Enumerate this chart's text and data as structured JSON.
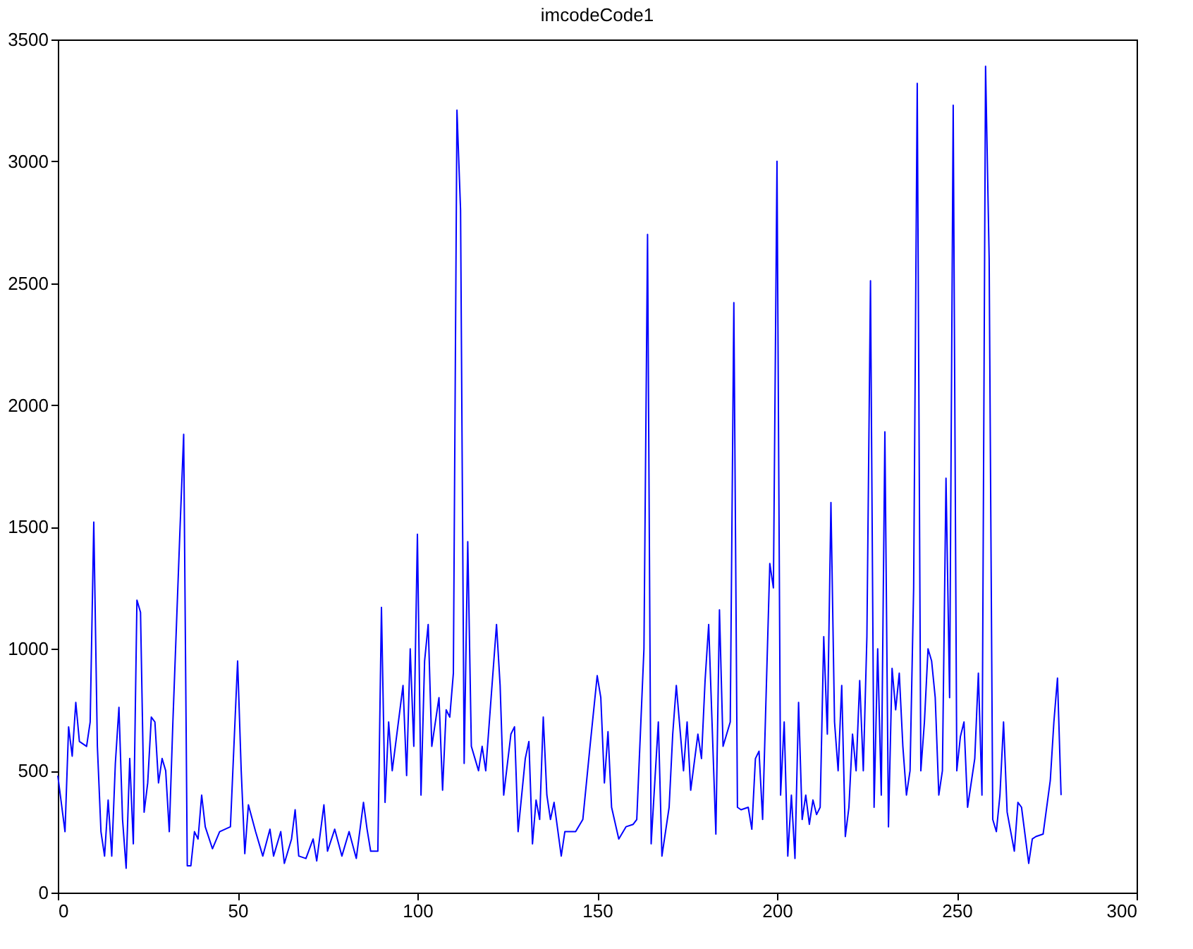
{
  "chart_data": {
    "type": "line",
    "title": "imcodeCode1",
    "x": [
      0,
      2,
      3,
      4,
      5,
      6,
      8,
      9,
      10,
      11,
      12,
      13,
      14,
      15,
      16,
      17,
      18,
      19,
      20,
      21,
      22,
      23,
      24,
      25,
      26,
      27,
      28,
      29,
      30,
      31,
      32,
      34,
      35,
      36,
      37,
      38,
      39,
      40,
      41,
      43,
      45,
      48,
      50,
      51,
      52,
      53,
      55,
      57,
      59,
      60,
      62,
      63,
      65,
      66,
      67,
      69,
      71,
      72,
      74,
      75,
      77,
      79,
      81,
      83,
      85,
      86,
      87,
      89,
      90,
      91,
      92,
      93,
      96,
      97,
      98,
      99,
      100,
      101,
      102,
      103,
      104,
      106,
      107,
      108,
      109,
      110,
      111,
      112,
      113,
      114,
      115,
      116,
      117,
      118,
      119,
      122,
      123,
      124,
      126,
      127,
      128,
      130,
      131,
      132,
      133,
      134,
      135,
      136,
      137,
      138,
      140,
      141,
      144,
      146,
      148,
      150,
      151,
      152,
      153,
      154,
      156,
      158,
      160,
      161,
      163,
      164,
      165,
      167,
      168,
      170,
      171,
      172,
      174,
      175,
      176,
      178,
      179,
      180,
      181,
      183,
      184,
      185,
      187,
      188,
      189,
      190,
      192,
      193,
      194,
      195,
      196,
      198,
      199,
      200,
      201,
      202,
      203,
      204,
      205,
      206,
      207,
      208,
      209,
      210,
      211,
      212,
      213,
      214,
      215,
      216,
      217,
      218,
      219,
      220,
      221,
      222,
      223,
      224,
      225,
      226,
      227,
      228,
      229,
      230,
      231,
      232,
      233,
      234,
      235,
      236,
      237,
      238,
      239,
      240,
      241,
      242,
      243,
      244,
      245,
      246,
      247,
      248,
      249,
      250,
      251,
      252,
      253,
      255,
      256,
      257,
      258,
      259,
      260,
      261,
      262,
      263,
      264,
      265,
      266,
      267,
      268,
      270,
      271,
      272,
      274,
      276,
      277,
      278,
      279
    ],
    "values": [
      480,
      250,
      680,
      560,
      780,
      620,
      600,
      700,
      1520,
      600,
      250,
      150,
      380,
      150,
      530,
      760,
      300,
      100,
      550,
      200,
      1200,
      1150,
      330,
      450,
      720,
      700,
      450,
      550,
      500,
      250,
      700,
      1500,
      1880,
      110,
      110,
      250,
      220,
      400,
      270,
      180,
      250,
      270,
      950,
      500,
      160,
      360,
      250,
      150,
      260,
      150,
      250,
      120,
      220,
      340,
      150,
      140,
      220,
      130,
      360,
      170,
      260,
      150,
      250,
      140,
      370,
      260,
      170,
      170,
      1170,
      370,
      700,
      500,
      850,
      480,
      1000,
      600,
      1470,
      400,
      950,
      1100,
      600,
      800,
      420,
      750,
      720,
      900,
      3210,
      2800,
      530,
      1440,
      600,
      550,
      500,
      600,
      500,
      1100,
      850,
      400,
      650,
      680,
      250,
      550,
      620,
      200,
      380,
      300,
      720,
      400,
      300,
      370,
      150,
      250,
      250,
      300,
      600,
      890,
      800,
      450,
      660,
      350,
      220,
      270,
      280,
      300,
      1000,
      2700,
      200,
      700,
      150,
      350,
      650,
      850,
      500,
      700,
      420,
      650,
      550,
      870,
      1100,
      240,
      1160,
      600,
      700,
      2420,
      350,
      340,
      350,
      260,
      550,
      580,
      300,
      1350,
      1250,
      3000,
      400,
      700,
      150,
      400,
      140,
      780,
      300,
      400,
      280,
      380,
      320,
      350,
      1050,
      650,
      1600,
      700,
      500,
      850,
      230,
      350,
      650,
      500,
      870,
      500,
      1050,
      2510,
      350,
      1000,
      400,
      1890,
      270,
      920,
      750,
      900,
      600,
      400,
      500,
      1250,
      3320,
      500,
      700,
      1000,
      950,
      800,
      400,
      500,
      1700,
      800,
      3230,
      500,
      640,
      700,
      350,
      550,
      900,
      400,
      3390,
      2600,
      300,
      250,
      400,
      700,
      330,
      250,
      170,
      370,
      350,
      120,
      220,
      230,
      240,
      460,
      700,
      880,
      400
    ],
    "color": "#0000ff",
    "xlim": [
      0,
      300
    ],
    "xticks": [
      0,
      50,
      100,
      150,
      200,
      250,
      300
    ],
    "ylim": [
      0,
      3500
    ],
    "yticks": [
      0,
      500,
      1000,
      1500,
      2000,
      2500,
      3000,
      3500
    ],
    "grid": false
  }
}
